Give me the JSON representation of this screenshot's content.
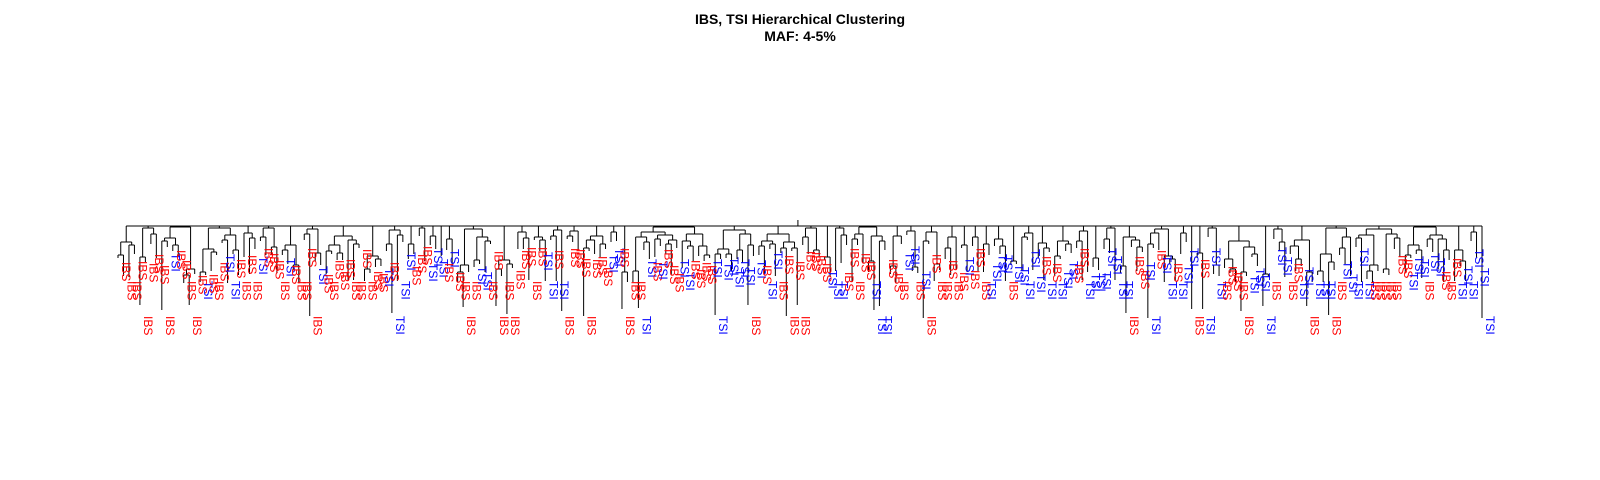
{
  "title": "IBS, TSI Hierarchical Clustering",
  "subtitle": "MAF: 4-5%",
  "colors": {
    "IBS": "#ff0000",
    "TSI": "#0000ff",
    "branch": "#000000"
  },
  "leaves": [
    "IBS",
    "IBS",
    "IBS",
    "IBS",
    "IBS",
    "IBS",
    "IBS",
    "IBS",
    "IBS",
    "TSI",
    "IBS",
    "IBS",
    "IBS",
    "IBS",
    "IBS",
    "TSI",
    "IBS",
    "IBS",
    "IBS",
    "TSI",
    "TSI",
    "IBS",
    "IBS",
    "IBS",
    "IBS",
    "TSI",
    "IBS",
    "IBS",
    "IBS",
    "IBS",
    "TSI",
    "IBS",
    "IBS",
    "IBS",
    "IBS",
    "IBS",
    "TSI",
    "IBS",
    "IBS",
    "IBS",
    "IBS",
    "IBS",
    "IBS",
    "IBS",
    "IBS",
    "IBS",
    "IBS",
    "IBS",
    "TSI",
    "IBS",
    "TSI",
    "TSI",
    "TSI",
    "IBS",
    "IBS",
    "IBS",
    "TSI",
    "TSI",
    "TSI",
    "IBS",
    "TSI",
    "IBS",
    "IBS",
    "IBS",
    "IBS",
    "TSI",
    "TSI",
    "IBS",
    "IBS",
    "IBS",
    "IBS",
    "IBS",
    "IBS",
    "IBS",
    "IBS",
    "IBS",
    "IBS",
    "TSI",
    "TSI",
    "IBS",
    "TSI",
    "IBS",
    "IBS",
    "IBS",
    "IBS",
    "IBS",
    "IBS",
    "IBS",
    "IBS",
    "TSI",
    "TSI",
    "IBS",
    "IBS",
    "IBS",
    "IBS",
    "TSI",
    "TSI",
    "IBS",
    "TSI",
    "IBS",
    "IBS",
    "IBS",
    "TSI",
    "TSI",
    "IBS",
    "IBS",
    "IBS",
    "IBS",
    "TSI",
    "TSI",
    "TSI",
    "TSI",
    "TSI",
    "TSI",
    "TSI",
    "IBS",
    "TSI",
    "IBS",
    "TSI",
    "TSI",
    "IBS",
    "IBS",
    "IBS",
    "IBS",
    "IBS",
    "IBS",
    "IBS",
    "IBS",
    "IBS",
    "TSI",
    "TSI",
    "TSI",
    "IBS",
    "IBS",
    "IBS",
    "IBS",
    "IBS",
    "TSI",
    "TSI",
    "TSI",
    "IBS",
    "IBS",
    "IBS",
    "TSI",
    "TSI",
    "IBS",
    "TSI",
    "IBS",
    "IBS",
    "IBS",
    "IBS",
    "IBS",
    "IBS",
    "IBS",
    "TSI",
    "IBS",
    "IBS",
    "IBS",
    "TSI",
    "TSI",
    "TSI",
    "TSI",
    "IBS",
    "TSI",
    "TSI",
    "TSI",
    "TSI",
    "TSI",
    "IBS",
    "TSI",
    "IBS",
    "TSI",
    "TSI",
    "TSI",
    "IBS",
    "IBS",
    "TSI",
    "TSI",
    "TSI",
    "TSI",
    "TSI",
    "TSI",
    "TSI",
    "TSI",
    "IBS",
    "IBS",
    "IBS",
    "TSI",
    "TSI",
    "IBS",
    "TSI",
    "TSI",
    "IBS",
    "TSI",
    "TSI",
    "TSI",
    "IBS",
    "IBS",
    "TSI",
    "TSI",
    "TSI",
    "IBS",
    "IBS",
    "IBS",
    "IBS",
    "IBS",
    "TSI",
    "TSI",
    "TSI",
    "TSI",
    "IBS",
    "TSI",
    "TSI",
    "IBS",
    "IBS",
    "TSI",
    "TSI",
    "IBS",
    "TSI",
    "TSI",
    "TSI",
    "IBS",
    "IBS",
    "TSI",
    "TSI",
    "TSI",
    "TSI",
    "TSI",
    "IBS",
    "IBS",
    "IBS",
    "IBS",
    "IBS",
    "IBS",
    "IBS",
    "TSI",
    "TSI",
    "TSI",
    "IBS",
    "TSI",
    "TSI",
    "IBS",
    "IBS",
    "IBS",
    "TSI",
    "TSI",
    "TSI",
    "TSI",
    "TSI",
    "TSI"
  ]
}
